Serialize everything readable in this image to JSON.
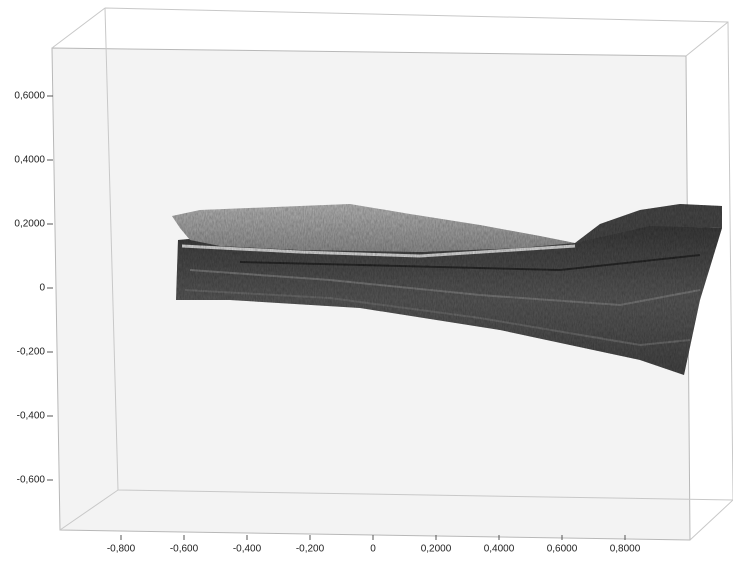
{
  "chart_data": {
    "type": "surface",
    "xlim": [
      -1,
      1
    ],
    "xticks": [
      {
        "value": -0.8,
        "label": "-0,800"
      },
      {
        "value": -0.6,
        "label": "-0,600"
      },
      {
        "value": -0.4,
        "label": "-0,400"
      },
      {
        "value": -0.2,
        "label": "-0,200"
      },
      0,
      {
        "value": 0.2,
        "label": "0,2000"
      },
      {
        "value": 0.4,
        "label": "0,4000"
      },
      {
        "value": 0.6,
        "label": "0,6000"
      },
      {
        "value": 0.8,
        "label": "0,8000"
      }
    ],
    "ylim": [
      -0.75,
      0.75
    ],
    "yticks": [
      {
        "value": 0.6,
        "label": "0,6000"
      },
      {
        "value": 0.4,
        "label": "0,4000"
      },
      {
        "value": 0.2,
        "label": "0,2000"
      },
      0,
      {
        "value": -0.2,
        "label": "-0,200"
      },
      {
        "value": -0.4,
        "label": "-0,400"
      },
      {
        "value": -0.6,
        "label": "-0,600"
      }
    ]
  }
}
